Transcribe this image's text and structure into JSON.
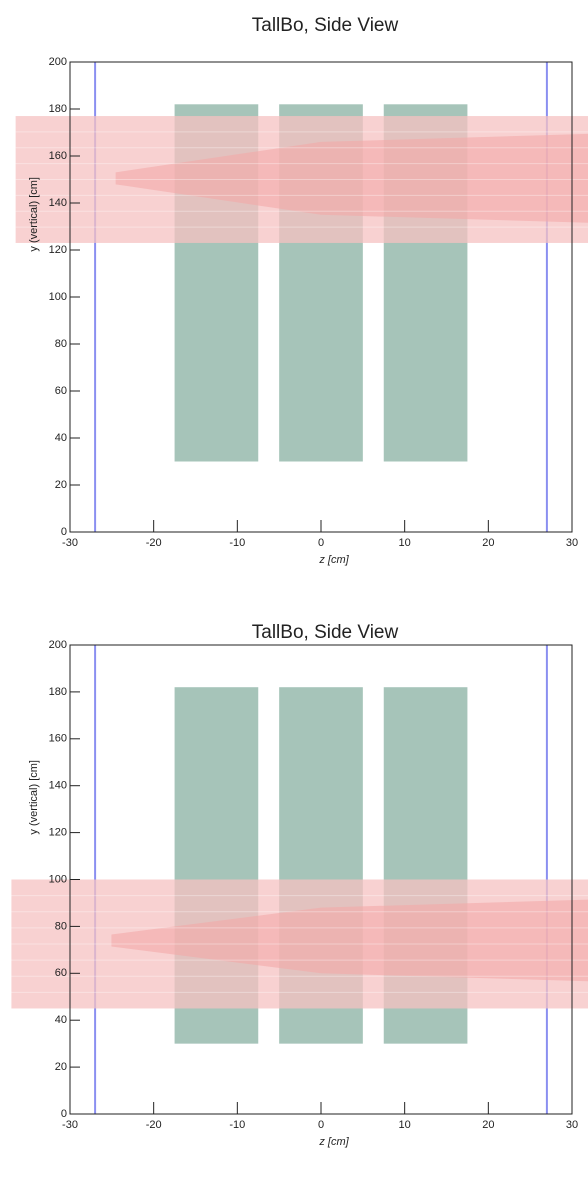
{
  "chart_data": [
    {
      "type": "geometry",
      "title": "TallBo, Side View",
      "xlabel": "z [cm]",
      "ylabel": "y (vertical) [cm]",
      "xlim": [
        -30,
        30
      ],
      "ylim": [
        0,
        200
      ],
      "xticks": [
        -30,
        -20,
        -10,
        0,
        10,
        20,
        30
      ],
      "yticks": [
        0,
        20,
        40,
        60,
        80,
        100,
        120,
        140,
        160,
        180,
        200
      ],
      "rects": [
        {
          "z": [
            -17.5,
            -7.5
          ],
          "y": [
            30,
            182
          ]
        },
        {
          "z": [
            -5,
            5
          ],
          "y": [
            30,
            182
          ]
        },
        {
          "z": [
            7.5,
            17.5
          ],
          "y": [
            30,
            182
          ]
        }
      ],
      "rect_color": "#a6c4b9",
      "vlines": [
        -27,
        27
      ],
      "vline_color": "#8a8ff0",
      "beam": {
        "y": [
          123,
          177
        ],
        "z": [
          -36.5,
          32
        ],
        "core": [
          135,
          166
        ]
      },
      "beam_color": "#f6c2c2"
    },
    {
      "type": "geometry",
      "title": "TallBo, Side View",
      "xlabel": "z [cm]",
      "ylabel": "y (vertical) [cm]",
      "xlim": [
        -30,
        30
      ],
      "ylim": [
        0,
        200
      ],
      "xticks": [
        -30,
        -20,
        -10,
        0,
        10,
        20,
        30
      ],
      "yticks": [
        0,
        20,
        40,
        60,
        80,
        100,
        120,
        140,
        160,
        180,
        200
      ],
      "rects": [
        {
          "z": [
            -17.5,
            -7.5
          ],
          "y": [
            30,
            182
          ]
        },
        {
          "z": [
            -5,
            5
          ],
          "y": [
            30,
            182
          ]
        },
        {
          "z": [
            7.5,
            17.5
          ],
          "y": [
            30,
            182
          ]
        }
      ],
      "rect_color": "#a6c4b9",
      "vlines": [
        -27,
        27
      ],
      "vline_color": "#8a8ff0",
      "beam": {
        "y": [
          45,
          100
        ],
        "z": [
          -37,
          32
        ],
        "core": [
          60,
          88
        ]
      },
      "beam_color": "#f6c2c2"
    }
  ]
}
